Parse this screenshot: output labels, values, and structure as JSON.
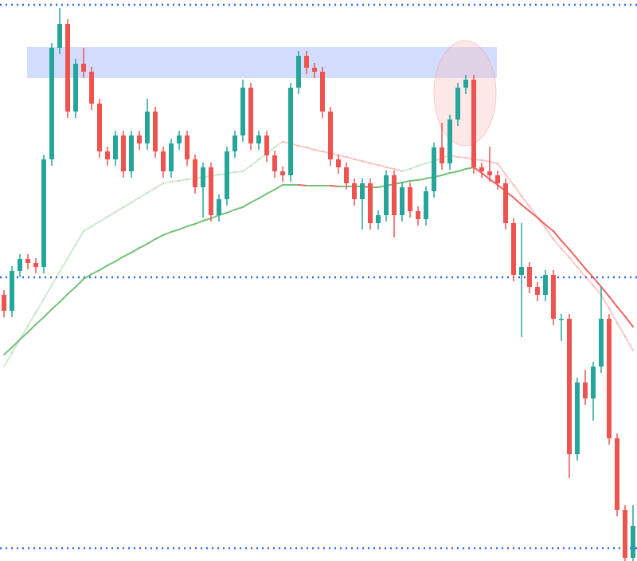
{
  "chart_data": {
    "type": "candlestick",
    "categories": [
      null,
      null,
      null,
      null,
      null,
      null,
      null,
      null,
      null,
      null,
      null,
      null,
      null,
      null,
      null,
      null,
      null,
      null,
      null,
      null,
      null,
      null,
      null,
      null,
      null,
      null,
      null,
      null,
      null,
      null,
      null,
      null,
      null,
      null,
      null,
      null,
      null,
      null,
      null,
      null,
      null,
      null,
      null,
      null,
      null,
      null,
      null,
      null,
      null,
      null,
      null,
      null,
      null,
      null,
      null,
      null,
      null,
      null,
      null,
      null,
      null,
      null,
      null,
      null,
      null,
      null,
      null,
      null,
      null,
      null,
      null,
      null,
      null,
      null,
      null,
      null,
      null,
      null,
      null,
      null
    ],
    "open": [
      334,
      314,
      364,
      379,
      374,
      369,
      504,
      644,
      674,
      564,
      624,
      614,
      574,
      514,
      504,
      534,
      489,
      534,
      524,
      564,
      514,
      489,
      524,
      534,
      504,
      469,
      494,
      434,
      454,
      514,
      534,
      594,
      524,
      534,
      509,
      489,
      484,
      594,
      634,
      619,
      614,
      564,
      504,
      494,
      474,
      454,
      474,
      424,
      434,
      484,
      434,
      469,
      439,
      429,
      464,
      519,
      499,
      554,
      594,
      604,
      494,
      489,
      484,
      474,
      424,
      359,
      369,
      344,
      334,
      359,
      304,
      304,
      134,
      224,
      204,
      244,
      304,
      154,
      64,
      4
    ],
    "high": [
      340,
      370,
      385,
      385,
      380,
      510,
      650,
      694,
      680,
      630,
      644,
      620,
      580,
      520,
      540,
      540,
      540,
      540,
      580,
      570,
      520,
      530,
      540,
      540,
      510,
      500,
      500,
      460,
      520,
      540,
      604,
      600,
      540,
      540,
      515,
      495,
      600,
      640,
      640,
      625,
      620,
      570,
      510,
      500,
      480,
      480,
      480,
      440,
      490,
      490,
      475,
      475,
      445,
      470,
      525,
      550,
      560,
      600,
      610,
      610,
      500,
      520,
      490,
      480,
      430,
      424,
      375,
      350,
      365,
      365,
      310,
      310,
      230,
      240,
      250,
      344,
      310,
      160,
      70,
      70
    ],
    "low": [
      306,
      306,
      356,
      366,
      361,
      361,
      496,
      636,
      556,
      556,
      606,
      566,
      506,
      496,
      496,
      481,
      481,
      516,
      516,
      506,
      481,
      481,
      516,
      496,
      461,
      431,
      426,
      426,
      446,
      506,
      526,
      516,
      516,
      501,
      481,
      476,
      476,
      586,
      611,
      606,
      556,
      496,
      486,
      466,
      446,
      416,
      416,
      416,
      426,
      406,
      426,
      431,
      421,
      421,
      456,
      491,
      491,
      546,
      586,
      486,
      481,
      476,
      466,
      416,
      351,
      281,
      336,
      326,
      326,
      296,
      276,
      104,
      126,
      196,
      176,
      236,
      146,
      56,
      0,
      0
    ],
    "close": [
      314,
      364,
      379,
      374,
      369,
      504,
      644,
      674,
      564,
      624,
      614,
      574,
      514,
      504,
      534,
      489,
      534,
      524,
      564,
      514,
      489,
      524,
      534,
      504,
      469,
      494,
      434,
      454,
      514,
      534,
      594,
      524,
      534,
      509,
      489,
      484,
      594,
      634,
      619,
      614,
      564,
      504,
      494,
      474,
      454,
      474,
      424,
      434,
      484,
      434,
      469,
      439,
      429,
      464,
      519,
      499,
      554,
      594,
      604,
      494,
      489,
      484,
      474,
      424,
      359,
      369,
      344,
      334,
      359,
      304,
      304,
      134,
      224,
      204,
      244,
      304,
      154,
      64,
      4,
      44
    ],
    "up_color": "#26a69a",
    "down_color": "#ef5350",
    "ylim": [
      0,
      704
    ],
    "lines": [
      {
        "rise_color": "#66bb6a",
        "fall_color": "#ef5350",
        "opacity": 0.9,
        "values": [
          259,
          268,
          278,
          287,
          297,
          306,
          316,
          325,
          335,
          344,
          354,
          360,
          365,
          371,
          376,
          382,
          387,
          393,
          398,
          404,
          409,
          413,
          416,
          420,
          423,
          427,
          430,
          434,
          437,
          441,
          444,
          450,
          455,
          461,
          466,
          472,
          472,
          472,
          471,
          471,
          471,
          471,
          470,
          470,
          470,
          470,
          469,
          469,
          471,
          473,
          475,
          477,
          478,
          480,
          482,
          484,
          487,
          489,
          492,
          494,
          487,
          479,
          472,
          464,
          456,
          447,
          439,
          431,
          422,
          414,
          402,
          391,
          379,
          367,
          356,
          344,
          332,
          319,
          307,
          294
        ]
      },
      {
        "rise_color": "#66bb6a",
        "fall_color": "#ef5350",
        "opacity": 0.3,
        "values": [
          244,
          261,
          278,
          295,
          312,
          329,
          346,
          363,
          380,
          397,
          414,
          420,
          426,
          432,
          438,
          444,
          450,
          456,
          462,
          468,
          474,
          476,
          477,
          479,
          480,
          482,
          483,
          485,
          486,
          488,
          489,
          496,
          504,
          511,
          519,
          526,
          524,
          521,
          519,
          516,
          514,
          512,
          509,
          507,
          504,
          502,
          499,
          497,
          494,
          492,
          489,
          492,
          496,
          499,
          502,
          506,
          509,
          507,
          506,
          504,
          503,
          501,
          499,
          485,
          472,
          458,
          445,
          431,
          418,
          404,
          392,
          381,
          369,
          357,
          346,
          334,
          317,
          299,
          282,
          264
        ]
      }
    ],
    "levels": [
      698,
      356,
      16
    ],
    "level_color": "#2962ff",
    "zone": [
      606,
      645
    ],
    "zone_color": "#c7d3fb"
  }
}
